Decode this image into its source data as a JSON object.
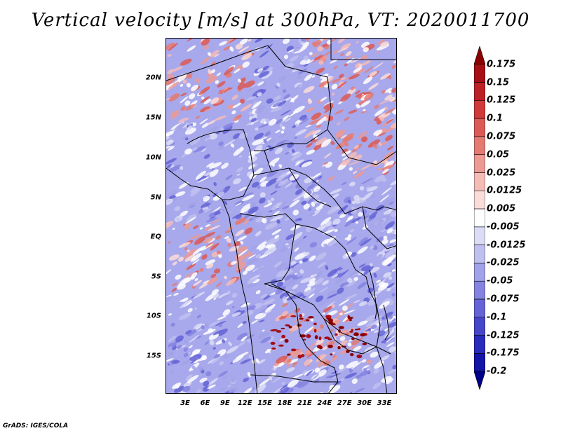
{
  "title": "Vertical velocity [m/s] at 300hPa, VT: 2020011700",
  "credit": "GrADS: IGES/COLA",
  "map": {
    "lat_labels": [
      "20N",
      "15N",
      "10N",
      "5N",
      "EQ",
      "5S",
      "10S",
      "15S"
    ],
    "lon_labels": [
      "3E",
      "6E",
      "9E",
      "12E",
      "15E",
      "18E",
      "21E",
      "24E",
      "27E",
      "30E",
      "33E"
    ]
  },
  "colorbar": {
    "labels": [
      "0.175",
      "0.15",
      "0.125",
      "0.1",
      "0.075",
      "0.05",
      "0.025",
      "0.0125",
      "0.005",
      "-0.005",
      "-0.0125",
      "-0.025",
      "-0.05",
      "-0.075",
      "-0.1",
      "-0.125",
      "-0.175",
      "-0.2"
    ],
    "colors": [
      "#8b0000",
      "#a50f15",
      "#bd2128",
      "#cf3a3a",
      "#dc5a55",
      "#e47a72",
      "#ec9a94",
      "#f4bcb7",
      "#fadcd8",
      "#ffffff",
      "#dcdcf7",
      "#c0c0f0",
      "#a2a2e8",
      "#8484e0",
      "#6464d6",
      "#4646ca",
      "#2a2abb",
      "#1414a6",
      "#00008b"
    ]
  }
}
